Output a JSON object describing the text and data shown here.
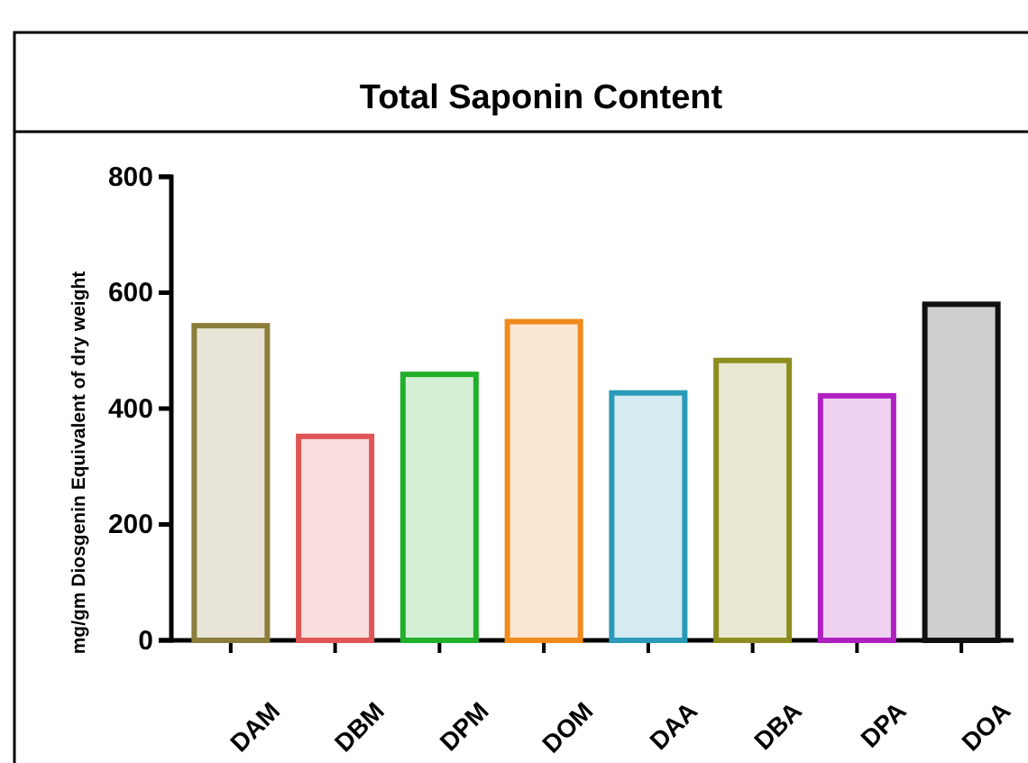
{
  "chart_data": {
    "type": "bar",
    "title": "Total Saponin Content",
    "ylabel": "mg/gm Diosgenin Equivalent of dry weight",
    "categories": [
      "DAM",
      "DBM",
      "DPM",
      "DOM",
      "DAA",
      "DBA",
      "DPA",
      "DOA"
    ],
    "values": [
      543,
      352,
      459,
      550,
      427,
      483,
      422,
      580
    ],
    "colors": [
      "#8b7d3a",
      "#e05555",
      "#22b02a",
      "#f08a1c",
      "#2a9ab8",
      "#8c8c20",
      "#b020c0",
      "#111111"
    ],
    "ylim": [
      0,
      800
    ],
    "yticks": [
      0,
      200,
      400,
      600,
      800
    ],
    "grid": false
  }
}
